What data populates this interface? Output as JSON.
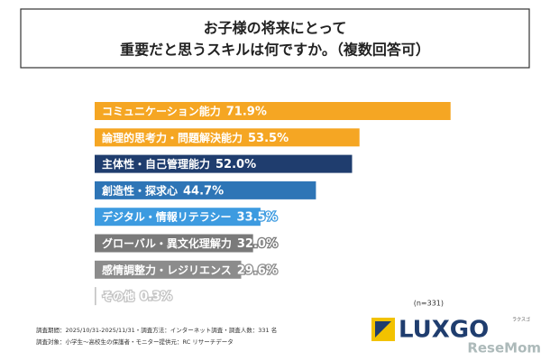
{
  "chart_data": {
    "type": "bar",
    "orientation": "horizontal",
    "title": [
      "お子様の将来にとって",
      "重要だと思うスキルは何ですか。（複数回答可）"
    ],
    "categories": [
      "コミュニケーション能力",
      "論理的思考力・問題解決能力",
      "主体性・自己管理能力",
      "創造性・探求心",
      "デジタル・情報リテラシー",
      "グローバル・異文化理解力",
      "感情調整力・レジリエンス",
      "その他"
    ],
    "values": [
      71.9,
      53.5,
      52.0,
      44.7,
      33.5,
      32.0,
      29.6,
      0.3
    ],
    "value_labels": [
      "71.9%",
      "53.5%",
      "52.0%",
      "44.7%",
      "33.5%",
      "32.0%",
      "29.6%",
      "0.3%"
    ],
    "colors": [
      "#f5a623",
      "#f5a623",
      "#1f3d6e",
      "#2e75b6",
      "#3d9be0",
      "#7a7a7a",
      "#8c8c8c",
      "#c4c4c4"
    ],
    "sample_note": "(n=331)",
    "footnotes": [
      "調査期間：2025/10/31-2025/11/31・調査方法：インターネット調査・調査人数：331 名",
      "調査対象：小学生～高校生の保護者・モニター提供元：RC リサーチデータ"
    ],
    "logo": {
      "name": "LUXGO",
      "kana": "ラクスゴ"
    },
    "watermark": "ReseMom"
  }
}
